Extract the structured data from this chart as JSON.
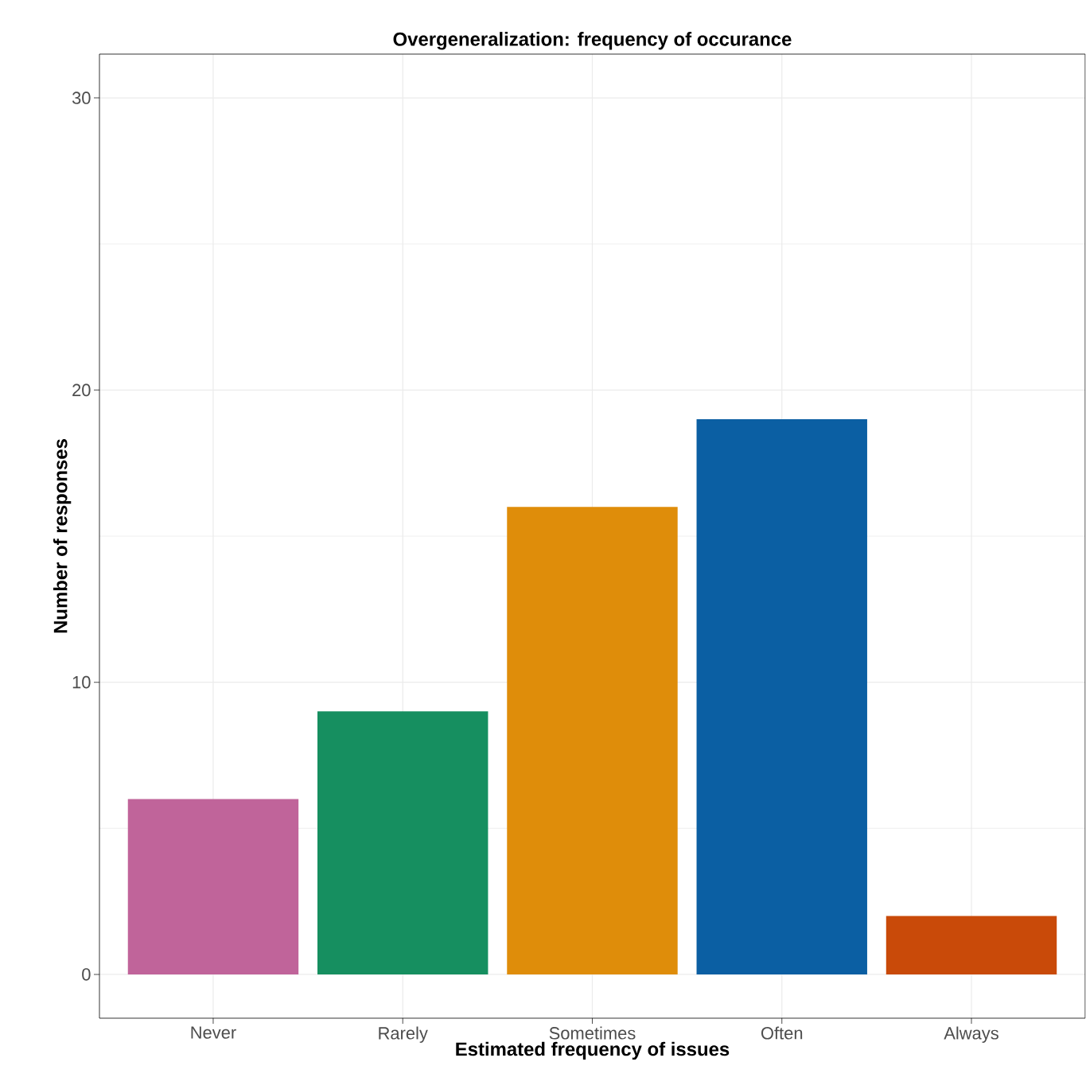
{
  "chart_data": {
    "type": "bar",
    "title": "Overgeneralization: frequency of occurance",
    "xlabel": "Estimated frequency of issues",
    "ylabel": "Number of responses",
    "categories": [
      "Never",
      "Rarely",
      "Sometimes",
      "Often",
      "Always"
    ],
    "values": [
      6,
      9,
      16,
      19,
      2
    ],
    "colors": [
      "#c0649a",
      "#168f60",
      "#df8d0a",
      "#0b5fa3",
      "#c94a09"
    ],
    "ylim": [
      -1.5,
      31.5
    ],
    "yticks": [
      0,
      10,
      20,
      30
    ],
    "grid": true
  }
}
